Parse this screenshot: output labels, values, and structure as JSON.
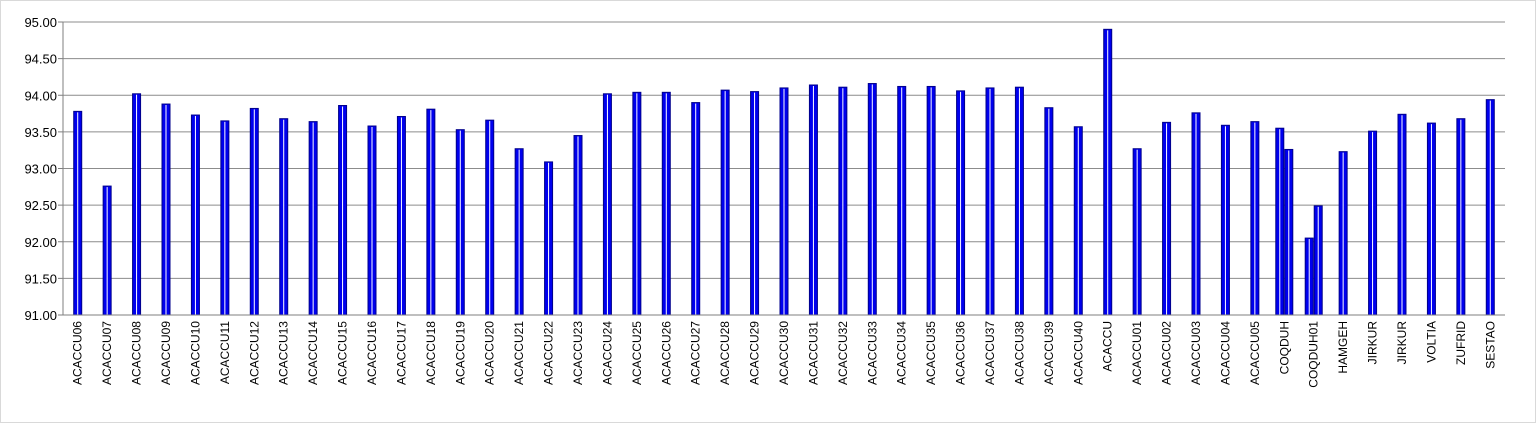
{
  "chart_data": {
    "type": "bar",
    "title": "",
    "xlabel": "",
    "ylabel": "",
    "ylim": [
      91.0,
      95.0
    ],
    "yticks": [
      "91.00",
      "91.50",
      "92.00",
      "92.50",
      "93.00",
      "93.50",
      "94.00",
      "94.50",
      "95.00"
    ],
    "grid": true,
    "legend": "none",
    "bar_color": "#0000ee",
    "bar_edge_color": "#00008b",
    "categories": [
      "ACACCU06",
      "ACACCU07",
      "ACACCU08",
      "ACACCU09",
      "ACACCU10",
      "ACACCU11",
      "ACACCU12",
      "ACACCU13",
      "ACACCU14",
      "ACACCU15",
      "ACACCU16",
      "ACACCU17",
      "ACACCU18",
      "ACACCU19",
      "ACACCU20",
      "ACACCU21",
      "ACACCU22",
      "ACACCU23",
      "ACACCU24",
      "ACACCU25",
      "ACACCU26",
      "ACACCU27",
      "ACACCU28",
      "ACACCU29",
      "ACACCU30",
      "ACACCU31",
      "ACACCU32",
      "ACACCU33",
      "ACACCU34",
      "ACACCU35",
      "ACACCU36",
      "ACACCU37",
      "ACACCU38",
      "ACACCU39",
      "ACACCU40",
      "ACACCU",
      "ACACCU01",
      "ACACCU02",
      "ACACCU03",
      "ACACCU04",
      "ACACCU05",
      "COQDUH",
      "COQDUH01",
      "HAMGEH",
      "JIRKUR",
      "JIRKUR",
      "VOLTIA",
      "ZUFRID",
      "SESTAO"
    ],
    "bars": [
      [
        93.78
      ],
      [
        92.76
      ],
      [
        94.02
      ],
      [
        93.88
      ],
      [
        93.73
      ],
      [
        93.65
      ],
      [
        93.82
      ],
      [
        93.68
      ],
      [
        93.64
      ],
      [
        93.86
      ],
      [
        93.58
      ],
      [
        93.71
      ],
      [
        93.81
      ],
      [
        93.53
      ],
      [
        93.66
      ],
      [
        93.27
      ],
      [
        93.09
      ],
      [
        93.45
      ],
      [
        94.02
      ],
      [
        94.04
      ],
      [
        94.04
      ],
      [
        93.9
      ],
      [
        94.07
      ],
      [
        94.05
      ],
      [
        94.1
      ],
      [
        94.14
      ],
      [
        94.11
      ],
      [
        94.16
      ],
      [
        94.12
      ],
      [
        94.12
      ],
      [
        94.06
      ],
      [
        94.1
      ],
      [
        94.11
      ],
      [
        93.83
      ],
      [
        93.57
      ],
      [
        94.9
      ],
      [
        93.27
      ],
      [
        93.63
      ],
      [
        93.76
      ],
      [
        93.59
      ],
      [
        93.64
      ],
      [
        93.55,
        93.26
      ],
      [
        92.05,
        92.49
      ],
      [
        93.23
      ],
      [
        93.51
      ],
      [
        93.74
      ],
      [
        93.62
      ],
      [
        93.68
      ],
      [
        93.94
      ]
    ]
  }
}
